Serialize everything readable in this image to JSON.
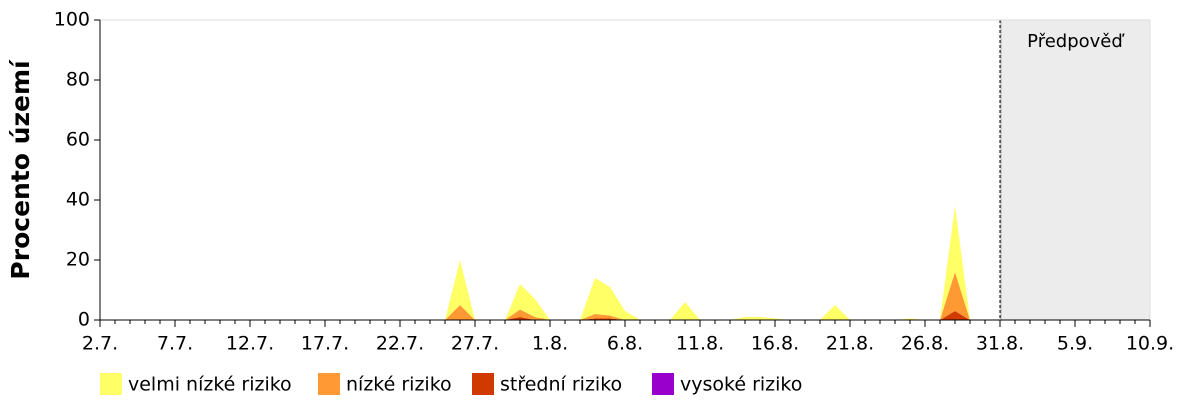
{
  "chart_data": {
    "type": "stacked_area",
    "y_label": "Procento území",
    "annotation": "Předpověď",
    "categories": [
      "2.7.",
      null,
      null,
      null,
      null,
      "7.7.",
      null,
      null,
      null,
      null,
      "12.7.",
      null,
      null,
      null,
      null,
      "17.7.",
      null,
      null,
      null,
      null,
      "22.7.",
      null,
      null,
      null,
      null,
      "27.7.",
      null,
      null,
      null,
      null,
      "1.8.",
      null,
      null,
      null,
      null,
      "6.8.",
      null,
      null,
      null,
      null,
      "11.8.",
      null,
      null,
      null,
      null,
      "16.8.",
      null,
      null,
      null,
      null,
      "21.8.",
      null,
      null,
      null,
      null,
      "26.8.",
      null,
      null,
      null,
      null,
      "31.8.",
      null,
      null,
      null,
      null,
      "5.9.",
      null,
      null,
      null,
      null,
      "10.9."
    ],
    "series": [
      {
        "name": "velmi nízké riziko",
        "color": "#ffff66",
        "values": [
          0,
          0,
          0,
          0,
          0,
          0,
          0,
          0,
          0,
          0,
          0,
          0,
          0,
          0,
          0,
          0,
          0,
          0,
          0,
          0,
          0,
          0,
          0,
          0,
          15,
          0,
          0,
          0,
          8.5,
          6,
          0,
          0,
          0,
          12,
          9.5,
          3,
          0,
          0,
          0,
          6,
          0,
          0,
          0,
          1,
          1,
          0.5,
          0,
          0,
          0,
          5,
          0,
          0,
          0,
          0,
          0.5,
          0,
          0,
          22,
          0,
          0,
          0,
          null,
          null,
          null,
          null,
          null,
          null,
          null,
          null,
          null,
          null
        ]
      },
      {
        "name": "nízké riziko",
        "color": "#ff9933",
        "values": [
          0,
          0,
          0,
          0,
          0,
          0,
          0,
          0,
          0,
          0,
          0,
          0,
          0,
          0,
          0,
          0,
          0,
          0,
          0,
          0,
          0,
          0,
          0,
          0,
          5,
          0,
          0,
          0,
          2.5,
          1,
          0,
          0,
          0,
          1.5,
          1,
          0,
          0,
          0,
          0,
          0,
          0,
          0,
          0,
          0,
          0,
          0,
          0,
          0,
          0,
          0,
          0,
          0,
          0,
          0,
          0,
          0,
          0,
          13,
          0,
          0,
          0,
          null,
          null,
          null,
          null,
          null,
          null,
          null,
          null,
          null,
          null
        ]
      },
      {
        "name": "střední riziko",
        "color": "#d03a00",
        "values": [
          0,
          0,
          0,
          0,
          0,
          0,
          0,
          0,
          0,
          0,
          0,
          0,
          0,
          0,
          0,
          0,
          0,
          0,
          0,
          0,
          0,
          0,
          0,
          0,
          0,
          0,
          0,
          0,
          1,
          0,
          0,
          0,
          0,
          0.5,
          0.5,
          0,
          0,
          0,
          0,
          0,
          0,
          0,
          0,
          0,
          0,
          0,
          0,
          0,
          0,
          0,
          0,
          0,
          0,
          0,
          0,
          0,
          0,
          3,
          0,
          0,
          0,
          null,
          null,
          null,
          null,
          null,
          null,
          null,
          null,
          null,
          null
        ]
      },
      {
        "name": "vysoké riziko",
        "color": "#9900cc",
        "values": [
          0,
          0,
          0,
          0,
          0,
          0,
          0,
          0,
          0,
          0,
          0,
          0,
          0,
          0,
          0,
          0,
          0,
          0,
          0,
          0,
          0,
          0,
          0,
          0,
          0,
          0,
          0,
          0,
          0,
          0,
          0,
          0,
          0,
          0,
          0,
          0,
          0,
          0,
          0,
          0,
          0,
          0,
          0,
          0,
          0,
          0,
          0,
          0,
          0,
          0,
          0,
          0,
          0,
          0,
          0,
          0,
          0,
          0,
          0,
          0,
          0,
          null,
          null,
          null,
          null,
          null,
          null,
          null,
          null,
          null,
          null
        ]
      }
    ],
    "ylim": [
      0,
      100
    ],
    "yticks": [
      0,
      20,
      40,
      60,
      80,
      100
    ]
  }
}
